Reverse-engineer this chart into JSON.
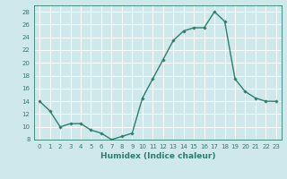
{
  "x": [
    0,
    1,
    2,
    3,
    4,
    5,
    6,
    7,
    8,
    9,
    10,
    11,
    12,
    13,
    14,
    15,
    16,
    17,
    18,
    19,
    20,
    21,
    22,
    23
  ],
  "y": [
    14,
    12.5,
    10,
    10.5,
    10.5,
    9.5,
    9,
    8,
    8.5,
    9,
    14.5,
    17.5,
    20.5,
    23.5,
    25,
    25.5,
    25.5,
    28,
    26.5,
    17.5,
    15.5,
    14.5,
    14,
    14
  ],
  "line_color": "#2e7d6e",
  "marker": "D",
  "markersize": 1.8,
  "linewidth": 1.0,
  "xlabel": "Humidex (Indice chaleur)",
  "xlabel_fontsize": 6.5,
  "ylim": [
    8,
    29
  ],
  "yticks": [
    8,
    10,
    12,
    14,
    16,
    18,
    20,
    22,
    24,
    26,
    28
  ],
  "xticks": [
    0,
    1,
    2,
    3,
    4,
    5,
    6,
    7,
    8,
    9,
    10,
    11,
    12,
    13,
    14,
    15,
    16,
    17,
    18,
    19,
    20,
    21,
    22,
    23
  ],
  "bg_color": "#cee8ec",
  "grid_color": "#ffffff",
  "tick_color": "#2e7d6e",
  "label_color": "#2e7d6e",
  "tick_fontsize": 5.0
}
